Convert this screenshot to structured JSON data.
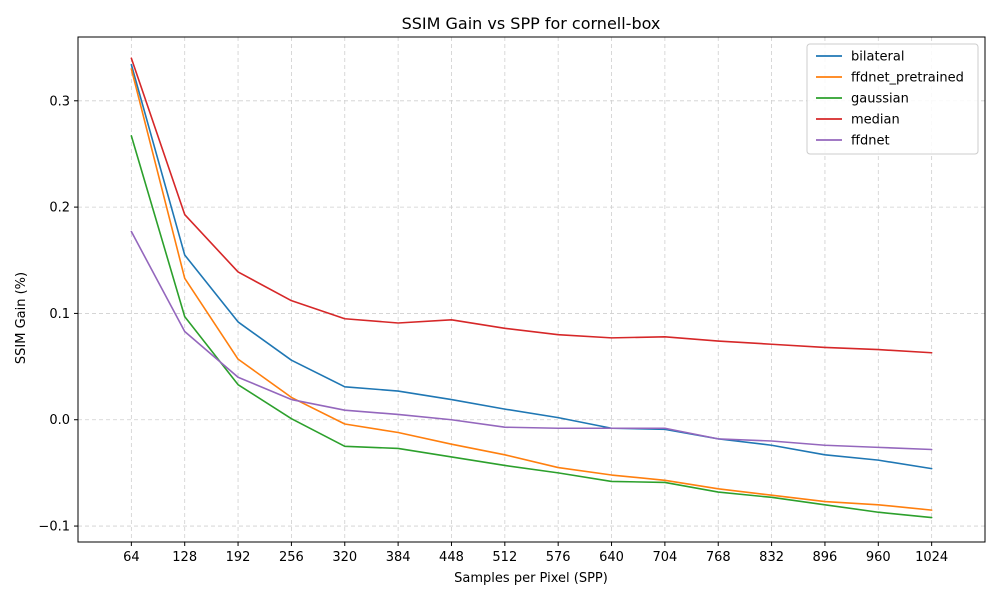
{
  "chart_data": {
    "type": "line",
    "title": "SSIM Gain vs SPP for cornell-box",
    "xlabel": "Samples per Pixel (SPP)",
    "ylabel": "SSIM Gain (%)",
    "x": [
      64,
      128,
      192,
      256,
      320,
      384,
      448,
      512,
      576,
      640,
      704,
      768,
      832,
      896,
      960,
      1024
    ],
    "x_tick_labels": [
      "64",
      "128",
      "192",
      "256",
      "320",
      "384",
      "448",
      "512",
      "576",
      "640",
      "704",
      "768",
      "832",
      "896",
      "960",
      "1024"
    ],
    "y_ticks": [
      -0.1,
      0.0,
      0.1,
      0.2,
      0.3
    ],
    "y_tick_labels": [
      "−0.1",
      "0.0",
      "0.1",
      "0.2",
      "0.3"
    ],
    "xlim": [
      -1,
      16
    ],
    "ylim": [
      -0.115,
      0.36
    ],
    "grid": true,
    "legend_position": "top-right",
    "series": [
      {
        "name": "bilateral",
        "color": "#1f77b4",
        "values": [
          0.334,
          0.155,
          0.092,
          0.056,
          0.031,
          0.027,
          0.019,
          0.01,
          0.002,
          -0.008,
          -0.009,
          -0.018,
          -0.024,
          -0.033,
          -0.038,
          -0.046
        ]
      },
      {
        "name": "ffdnet_pretrained",
        "color": "#ff7f0e",
        "values": [
          0.33,
          0.133,
          0.057,
          0.021,
          -0.004,
          -0.012,
          -0.023,
          -0.033,
          -0.045,
          -0.052,
          -0.057,
          -0.065,
          -0.071,
          -0.077,
          -0.08,
          -0.085
        ]
      },
      {
        "name": "gaussian",
        "color": "#2ca02c",
        "values": [
          0.267,
          0.097,
          0.033,
          0.001,
          -0.025,
          -0.027,
          -0.035,
          -0.043,
          -0.05,
          -0.058,
          -0.059,
          -0.068,
          -0.073,
          -0.08,
          -0.087,
          -0.092
        ]
      },
      {
        "name": "median",
        "color": "#d62728",
        "values": [
          0.34,
          0.193,
          0.139,
          0.112,
          0.095,
          0.091,
          0.094,
          0.086,
          0.08,
          0.077,
          0.078,
          0.074,
          0.071,
          0.068,
          0.066,
          0.063
        ]
      },
      {
        "name": "ffdnet",
        "color": "#9467bd",
        "values": [
          0.177,
          0.083,
          0.04,
          0.019,
          0.009,
          0.005,
          0.0,
          -0.007,
          -0.008,
          -0.008,
          -0.008,
          -0.018,
          -0.02,
          -0.024,
          -0.026,
          -0.028
        ]
      }
    ]
  }
}
